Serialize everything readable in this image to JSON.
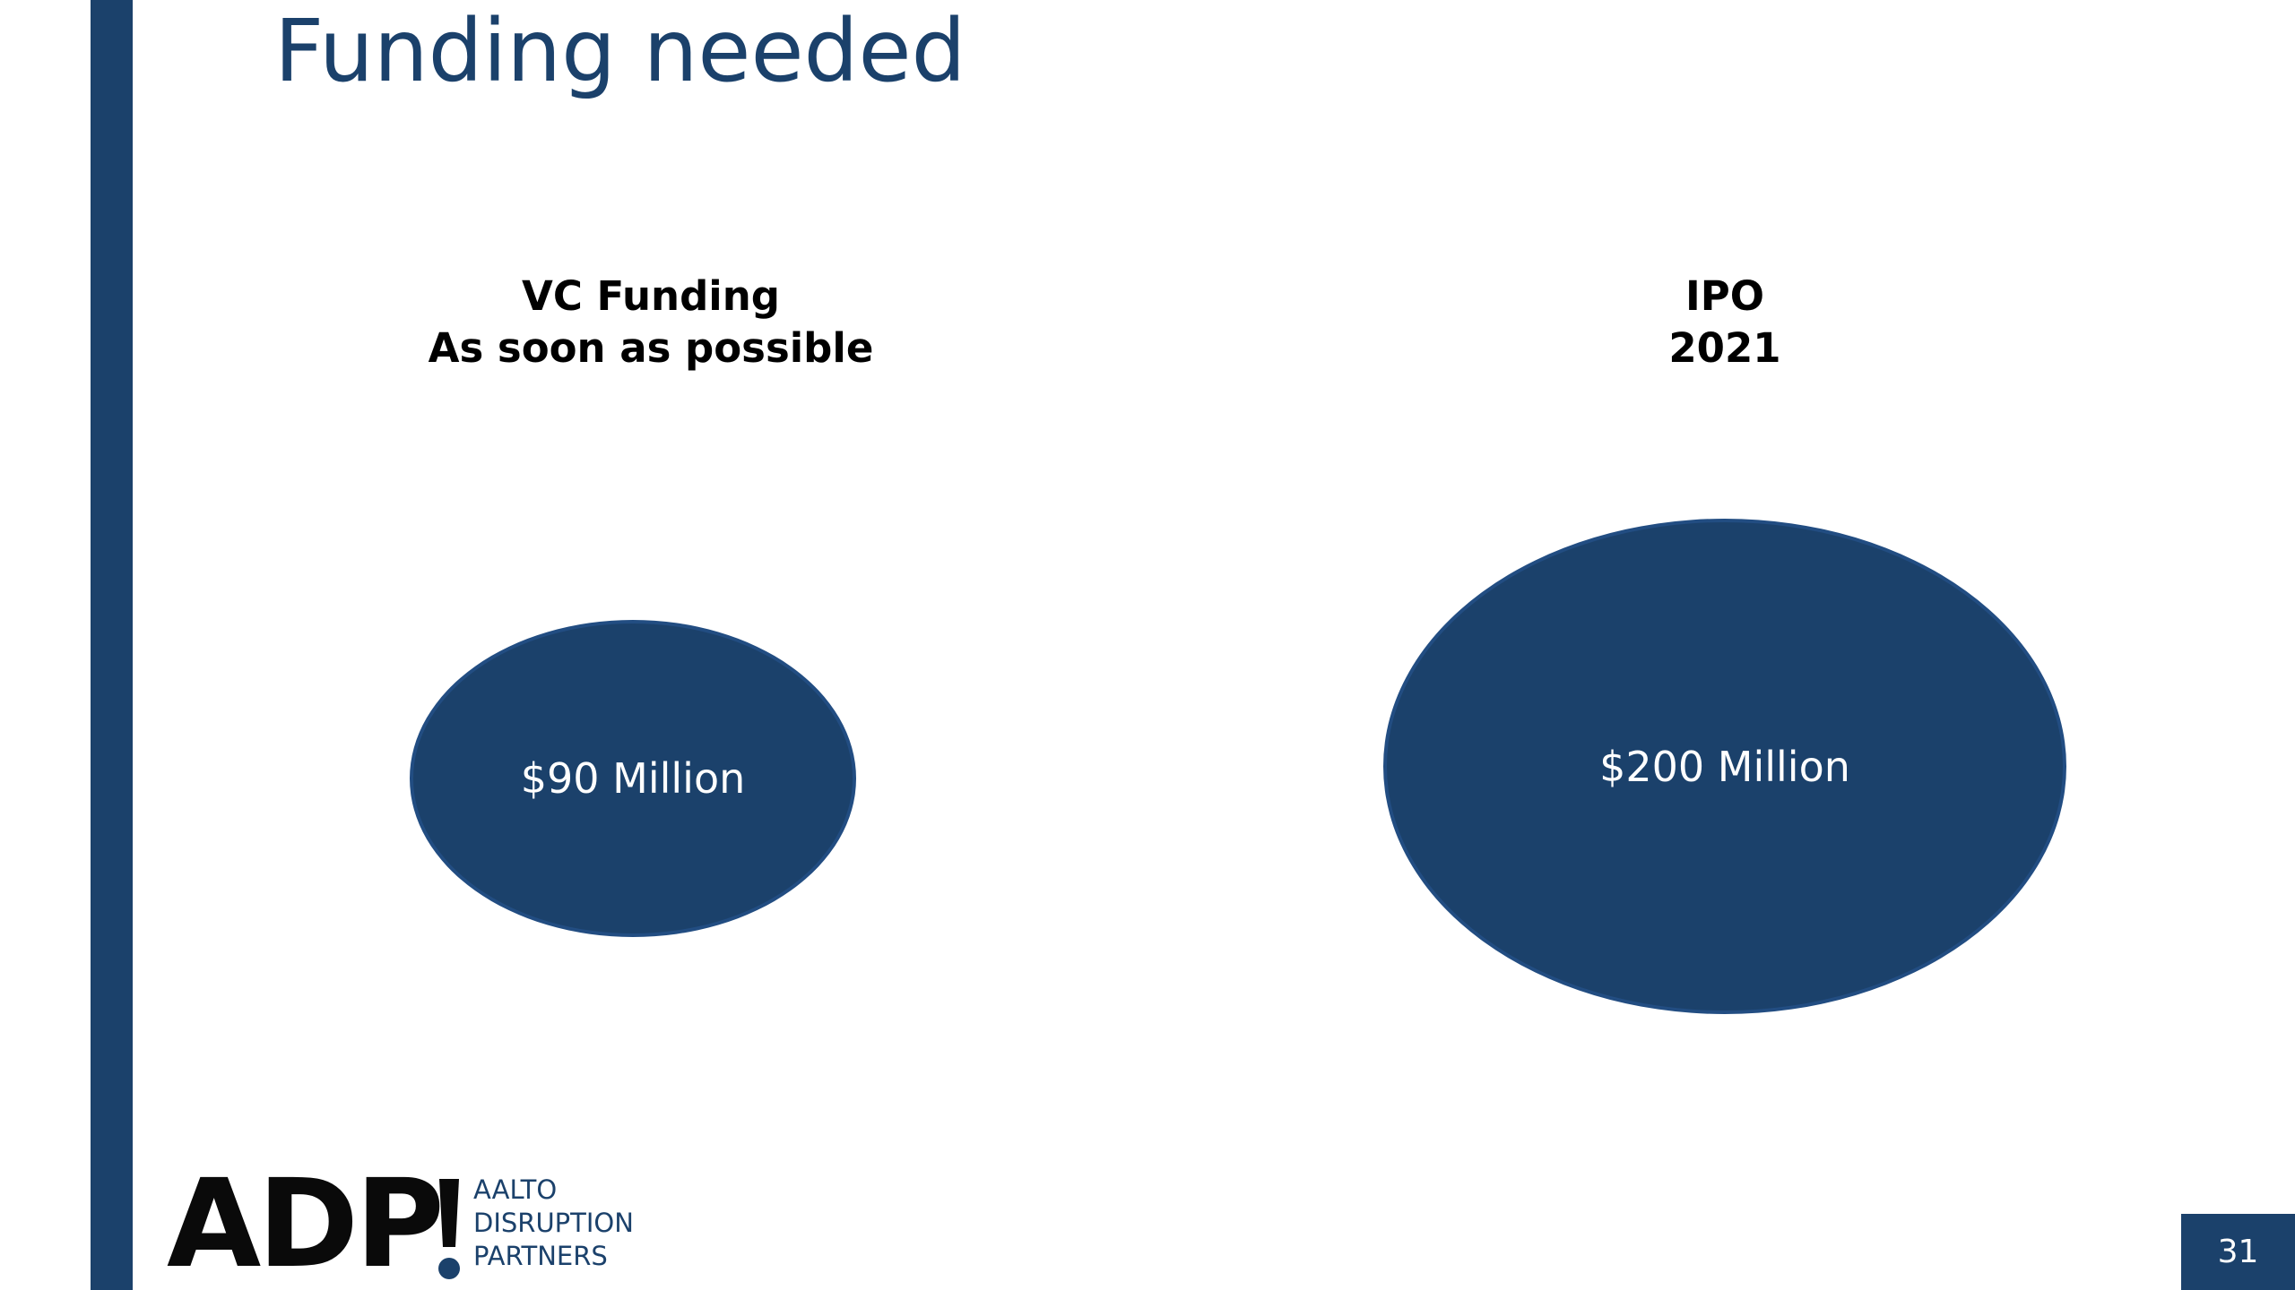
{
  "slide": {
    "title": "Funding needed",
    "page_number": "31"
  },
  "columns": [
    {
      "heading_line1": "VC Funding",
      "heading_line2": "As soon as possible",
      "amount": "$90 Million"
    },
    {
      "heading_line1": "IPO",
      "heading_line2": "2021",
      "amount": "$200 Million"
    }
  ],
  "logo": {
    "mark": "ADP",
    "line1": "AALTO",
    "line2": "DISRUPTION",
    "line3": "PARTNERS"
  },
  "colors": {
    "brand_navy": "#1b416b",
    "bubble_outline": "#224d82",
    "logo_black": "#0a0a0a",
    "background": "#ffffff"
  }
}
